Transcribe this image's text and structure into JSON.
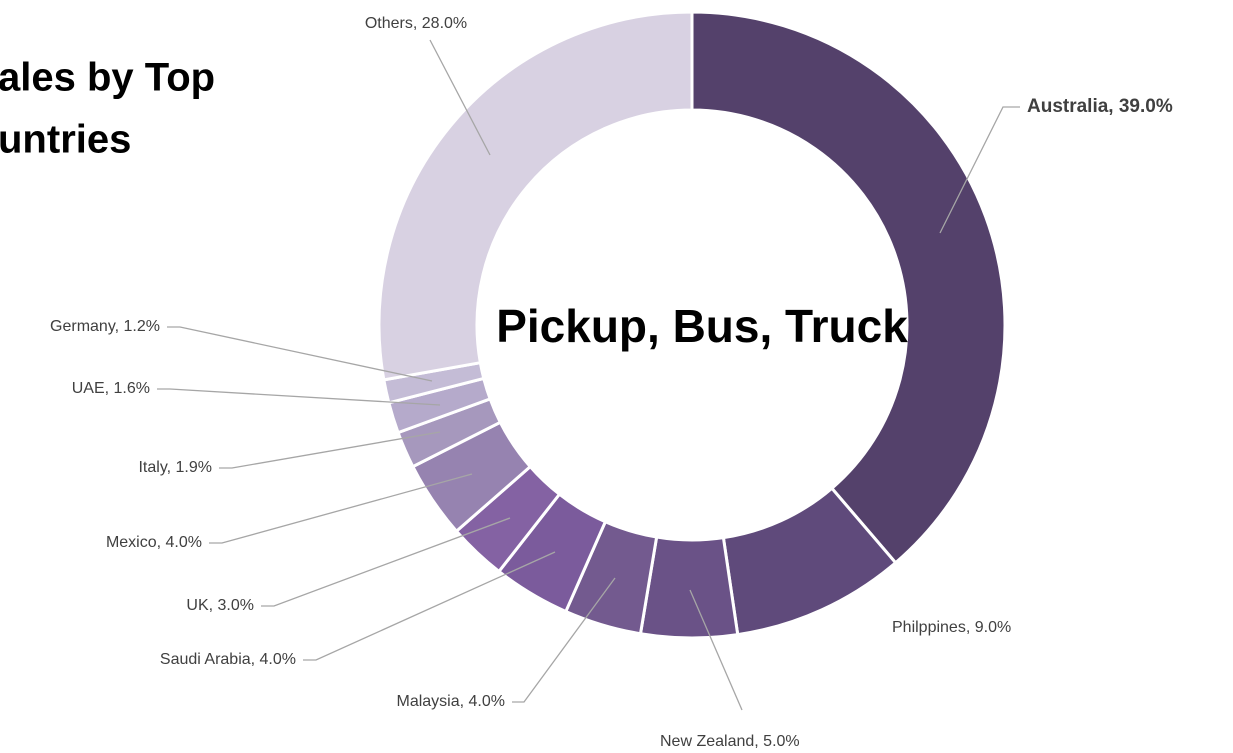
{
  "chart_data": {
    "type": "donut",
    "title_lines": [
      "ales by Top",
      "untries"
    ],
    "center_label": "Pickup, Bus, Truck",
    "categories": [
      "Australia",
      "Philippines",
      "New Zealand",
      "Malaysia",
      "Saudi Arabia",
      "UK",
      "Mexico",
      "Italy",
      "UAE",
      "Germany",
      "Others"
    ],
    "values": [
      39.0,
      9.0,
      5.0,
      4.0,
      4.0,
      3.0,
      4.0,
      1.9,
      1.6,
      1.2,
      28.0
    ],
    "value_labels": [
      "Australia, 39.0%",
      "Philppines, 9.0%",
      "New Zealand, 5.0%",
      "Malaysia, 4.0%",
      "Saudi Arabia, 4.0%",
      "UK, 3.0%",
      "Mexico, 4.0%",
      "Italy, 1.9%",
      "UAE, 1.6%",
      "Germany, 1.2%",
      "Others, 28.0%"
    ],
    "colors": [
      "#54416b",
      "#5f4a7b",
      "#6a5287",
      "#735a8f",
      "#7b5b9c",
      "#8462a3",
      "#9683b0",
      "#a698bd",
      "#b5aacb",
      "#c4bcd6",
      "#d8d1e2"
    ]
  }
}
